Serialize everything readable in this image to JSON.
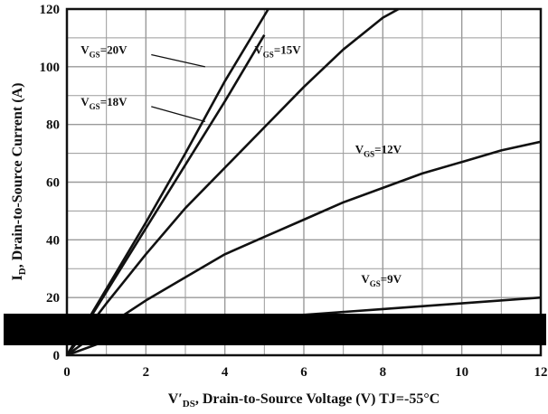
{
  "chart_data": {
    "type": "line",
    "xlabel": "V′DS, Drain-to-Source Voltage (V) TJ=-55°C",
    "ylabel": "ID, Drain-to-Source Current (A)",
    "xlim": [
      0,
      12
    ],
    "ylim": [
      0,
      120
    ],
    "x_ticks": [
      0,
      2,
      4,
      6,
      8,
      10,
      12
    ],
    "y_ticks": [
      0,
      20,
      40,
      60,
      80,
      100,
      120
    ],
    "grid": true,
    "series": [
      {
        "name": "VGS=20V",
        "x": [
          0,
          0.5,
          1,
          2,
          3,
          4,
          5.1
        ],
        "y": [
          0,
          11.5,
          23,
          46,
          70,
          95,
          120
        ]
      },
      {
        "name": "VGS=18V",
        "x": [
          0,
          0.5,
          1,
          2,
          3,
          4,
          5
        ],
        "y": [
          0,
          11,
          22,
          44,
          66,
          88,
          111
        ]
      },
      {
        "name": "VGS=15V",
        "x": [
          0,
          1,
          2,
          3,
          4,
          5,
          6,
          7,
          8,
          8.4
        ],
        "y": [
          0,
          18,
          35,
          51,
          65,
          79,
          93,
          106,
          117,
          120
        ]
      },
      {
        "name": "VGS=12V",
        "x": [
          0,
          1,
          2,
          3,
          4,
          5,
          6,
          7,
          8,
          9,
          10,
          11,
          12
        ],
        "y": [
          0,
          10,
          19,
          27,
          35,
          41,
          47,
          53,
          58,
          63,
          67,
          71,
          74
        ]
      },
      {
        "name": "VGS=9V",
        "x": [
          0,
          1,
          2,
          4,
          6,
          8,
          10,
          12
        ],
        "y": [
          0,
          5,
          9,
          12,
          14,
          16,
          18,
          20
        ]
      }
    ],
    "annotations": [
      {
        "label": "VGS=20V",
        "base": "V",
        "sub": "GS",
        "rest": "=20V",
        "at": [
          0.35,
          104.5
        ],
        "arrow_to": [
          3.5,
          100
        ]
      },
      {
        "label": "VGS=18V",
        "base": "V",
        "sub": "GS",
        "rest": "=18V",
        "at": [
          0.35,
          86.5
        ],
        "arrow_to": [
          3.5,
          81
        ]
      },
      {
        "label": "VGS=15V",
        "base": "V",
        "sub": "GS",
        "rest": "=15V",
        "at": [
          4.75,
          104.5
        ]
      },
      {
        "label": "VGS=12V",
        "base": "V",
        "sub": "GS",
        "rest": "=12V",
        "at": [
          7.3,
          70
        ]
      },
      {
        "label": "VGS=9V",
        "base": "V",
        "sub": "GS",
        "rest": "=9V",
        "at": [
          7.45,
          25
        ]
      }
    ]
  }
}
